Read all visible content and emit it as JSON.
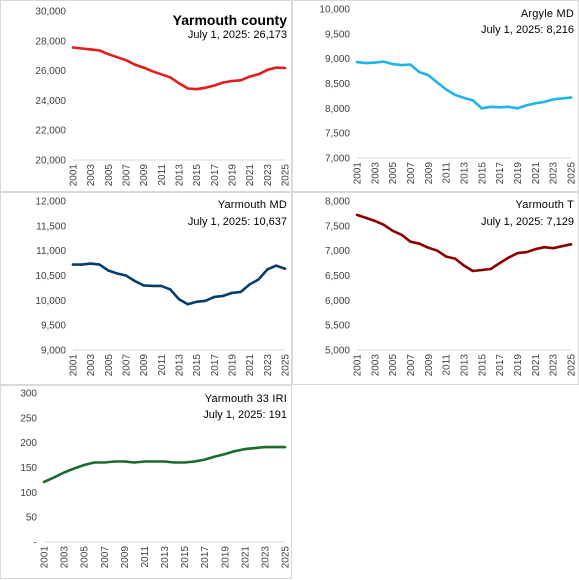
{
  "chart_data": [
    {
      "type": "line",
      "title": "Yarmouth county",
      "subtitle": "July 1, 2025: 26,173",
      "color": "#e61c1c",
      "ylim": [
        20000,
        30000
      ],
      "yticks": [
        20000,
        22000,
        24000,
        26000,
        28000,
        30000
      ],
      "ytick_labels": [
        "20,000",
        "22,000",
        "24,000",
        "26,000",
        "28,000",
        "30,000"
      ],
      "x": [
        2001,
        2002,
        2003,
        2004,
        2005,
        2006,
        2007,
        2008,
        2009,
        2010,
        2011,
        2012,
        2013,
        2014,
        2015,
        2016,
        2017,
        2018,
        2019,
        2020,
        2021,
        2022,
        2023,
        2024,
        2025
      ],
      "xtick_labels": [
        "2001",
        "2003",
        "2005",
        "2007",
        "2009",
        "2011",
        "2013",
        "2015",
        "2017",
        "2019",
        "2021",
        "2023",
        "2025"
      ],
      "values": [
        27550,
        27480,
        27420,
        27350,
        27100,
        26900,
        26700,
        26400,
        26200,
        25950,
        25750,
        25550,
        25150,
        24800,
        24750,
        24850,
        25000,
        25200,
        25300,
        25350,
        25600,
        25750,
        26050,
        26200,
        26173
      ]
    },
    {
      "type": "line",
      "title": "Argyle MD",
      "subtitle": "July 1, 2025: 8,216",
      "color": "#1fb4e9",
      "ylim": [
        7000,
        10000
      ],
      "yticks": [
        7000,
        7500,
        8000,
        8500,
        9000,
        9500,
        10000
      ],
      "ytick_labels": [
        "7,000",
        "7,500",
        "8,000",
        "8,500",
        "9,000",
        "9,500",
        "10,000"
      ],
      "x": [
        2001,
        2002,
        2003,
        2004,
        2005,
        2006,
        2007,
        2008,
        2009,
        2010,
        2011,
        2012,
        2013,
        2014,
        2015,
        2016,
        2017,
        2018,
        2019,
        2020,
        2021,
        2022,
        2023,
        2024,
        2025
      ],
      "xtick_labels": [
        "2001",
        "2003",
        "2005",
        "2007",
        "2009",
        "2011",
        "2013",
        "2015",
        "2017",
        "2019",
        "2021",
        "2023",
        "2025"
      ],
      "values": [
        8930,
        8910,
        8920,
        8940,
        8890,
        8870,
        8880,
        8730,
        8670,
        8520,
        8380,
        8270,
        8210,
        8160,
        8000,
        8030,
        8020,
        8030,
        8000,
        8060,
        8100,
        8130,
        8180,
        8200,
        8216
      ]
    },
    {
      "type": "line",
      "title": "Yarmouth MD",
      "subtitle": "July 1, 2025: 10,637",
      "color": "#0a3d6b",
      "ylim": [
        9000,
        12000
      ],
      "yticks": [
        9000,
        9500,
        10000,
        10500,
        11000,
        11500,
        12000
      ],
      "ytick_labels": [
        "9,000",
        "9,500",
        "10,000",
        "10,500",
        "11,000",
        "11,500",
        "12,000"
      ],
      "x": [
        2001,
        2002,
        2003,
        2004,
        2005,
        2006,
        2007,
        2008,
        2009,
        2010,
        2011,
        2012,
        2013,
        2014,
        2015,
        2016,
        2017,
        2018,
        2019,
        2020,
        2021,
        2022,
        2023,
        2024,
        2025
      ],
      "xtick_labels": [
        "2001",
        "2003",
        "2005",
        "2007",
        "2009",
        "2011",
        "2013",
        "2015",
        "2017",
        "2019",
        "2021",
        "2023",
        "2025"
      ],
      "values": [
        10720,
        10720,
        10740,
        10720,
        10600,
        10540,
        10500,
        10390,
        10300,
        10290,
        10290,
        10220,
        10020,
        9920,
        9970,
        9990,
        10070,
        10090,
        10150,
        10170,
        10320,
        10420,
        10620,
        10700,
        10637
      ]
    },
    {
      "type": "line",
      "title": "Yarmouth T",
      "subtitle": "July 1, 2025: 7,129",
      "color": "#8b0000",
      "ylim": [
        5000,
        8000
      ],
      "yticks": [
        5000,
        5500,
        6000,
        6500,
        7000,
        7500,
        8000
      ],
      "ytick_labels": [
        "5,000",
        "5,500",
        "6,000",
        "6,500",
        "7,000",
        "7,500",
        "8,000"
      ],
      "x": [
        2001,
        2002,
        2003,
        2004,
        2005,
        2006,
        2007,
        2008,
        2009,
        2010,
        2011,
        2012,
        2013,
        2014,
        2015,
        2016,
        2017,
        2018,
        2019,
        2020,
        2021,
        2022,
        2023,
        2024,
        2025
      ],
      "xtick_labels": [
        "2001",
        "2003",
        "2005",
        "2007",
        "2009",
        "2011",
        "2013",
        "2015",
        "2017",
        "2019",
        "2021",
        "2023",
        "2025"
      ],
      "values": [
        7720,
        7660,
        7600,
        7520,
        7400,
        7320,
        7180,
        7140,
        7060,
        7000,
        6880,
        6840,
        6700,
        6590,
        6610,
        6630,
        6750,
        6860,
        6950,
        6970,
        7030,
        7070,
        7050,
        7090,
        7129
      ]
    },
    {
      "type": "line",
      "title": "Yarmouth 33 IRI",
      "subtitle": "July 1, 2025: 191",
      "color": "#1a6b2e",
      "ylim": [
        0,
        300
      ],
      "yticks": [
        0,
        50,
        100,
        150,
        200,
        250,
        300
      ],
      "ytick_labels": [
        "-",
        "50",
        "100",
        "150",
        "200",
        "250",
        "300"
      ],
      "x": [
        2001,
        2002,
        2003,
        2004,
        2005,
        2006,
        2007,
        2008,
        2009,
        2010,
        2011,
        2012,
        2013,
        2014,
        2015,
        2016,
        2017,
        2018,
        2019,
        2020,
        2021,
        2022,
        2023,
        2024,
        2025
      ],
      "xtick_labels": [
        "2001",
        "2003",
        "2005",
        "2007",
        "2009",
        "2011",
        "2013",
        "2015",
        "2017",
        "2019",
        "2021",
        "2023",
        "2025"
      ],
      "values": [
        121,
        130,
        140,
        148,
        155,
        160,
        160,
        162,
        162,
        160,
        162,
        162,
        162,
        160,
        160,
        162,
        166,
        172,
        177,
        183,
        187,
        189,
        191,
        191,
        191
      ]
    }
  ]
}
